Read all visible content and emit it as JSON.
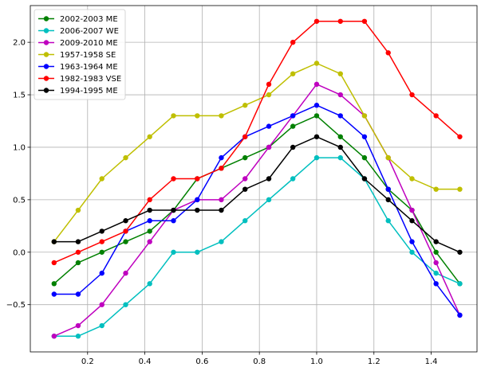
{
  "chart_data": {
    "type": "line",
    "title": "",
    "xlabel": "",
    "ylabel": "",
    "xlim": [
      0.0,
      1.56
    ],
    "ylim": [
      -0.95,
      2.35
    ],
    "grid": true,
    "legend_position": "top-left",
    "x_ticks": [
      0.2,
      0.4,
      0.6,
      0.8,
      1.0,
      1.2,
      1.4
    ],
    "x_tick_labels": [
      "0.2",
      "0.4",
      "0.6",
      "0.8",
      "1.0",
      "1.2",
      "1.4"
    ],
    "y_ticks": [
      -0.5,
      0.0,
      0.5,
      1.0,
      1.5,
      2.0
    ],
    "y_tick_labels": [
      "−0.5",
      "0.0",
      "0.5",
      "1.0",
      "1.5",
      "2.0"
    ],
    "x": [
      0.083,
      0.167,
      0.25,
      0.333,
      0.417,
      0.5,
      0.583,
      0.667,
      0.75,
      0.833,
      0.917,
      1.0,
      1.083,
      1.167,
      1.25,
      1.333,
      1.417,
      1.5
    ],
    "series": [
      {
        "name": "2002-2003 ME",
        "color": "#008000",
        "values": [
          -0.3,
          -0.1,
          0.0,
          0.1,
          0.2,
          0.4,
          0.7,
          0.8,
          0.9,
          1.0,
          1.2,
          1.3,
          1.1,
          0.9,
          0.6,
          0.4,
          0.0,
          -0.3
        ]
      },
      {
        "name": "2006-2007 WE",
        "color": "#00bfbf",
        "values": [
          -0.8,
          -0.8,
          -0.7,
          -0.5,
          -0.3,
          0.0,
          0.0,
          0.1,
          0.3,
          0.5,
          0.7,
          0.9,
          0.9,
          0.7,
          0.3,
          0.0,
          -0.2,
          -0.3
        ]
      },
      {
        "name": "2009-2010 ME",
        "color": "#bf00bf",
        "values": [
          -0.8,
          -0.7,
          -0.5,
          -0.2,
          0.1,
          0.4,
          0.5,
          0.5,
          0.7,
          1.0,
          1.3,
          1.6,
          1.5,
          1.3,
          0.9,
          0.4,
          -0.1,
          -0.6
        ]
      },
      {
        "name": "1957-1958 SE",
        "color": "#bfbf00",
        "values": [
          0.1,
          0.4,
          0.7,
          0.9,
          1.1,
          1.3,
          1.3,
          1.3,
          1.4,
          1.5,
          1.7,
          1.8,
          1.7,
          1.3,
          0.9,
          0.7,
          0.6,
          0.6
        ]
      },
      {
        "name": "1963-1964 ME",
        "color": "#0000ff",
        "values": [
          -0.4,
          -0.4,
          -0.2,
          0.2,
          0.3,
          0.3,
          0.5,
          0.9,
          1.1,
          1.2,
          1.3,
          1.4,
          1.3,
          1.1,
          0.6,
          0.1,
          -0.3,
          -0.6
        ]
      },
      {
        "name": "1982-1983 VSE",
        "color": "#ff0000",
        "values": [
          -0.1,
          0.0,
          0.1,
          0.2,
          0.5,
          0.7,
          0.7,
          0.8,
          1.1,
          1.6,
          2.0,
          2.2,
          2.2,
          2.2,
          1.9,
          1.5,
          1.3,
          1.1
        ]
      },
      {
        "name": "1994-1995 ME",
        "color": "#000000",
        "values": [
          0.1,
          0.1,
          0.2,
          0.3,
          0.4,
          0.4,
          0.4,
          0.4,
          0.6,
          0.7,
          1.0,
          1.1,
          1.0,
          0.7,
          0.5,
          0.3,
          0.1,
          0.0
        ]
      }
    ]
  }
}
